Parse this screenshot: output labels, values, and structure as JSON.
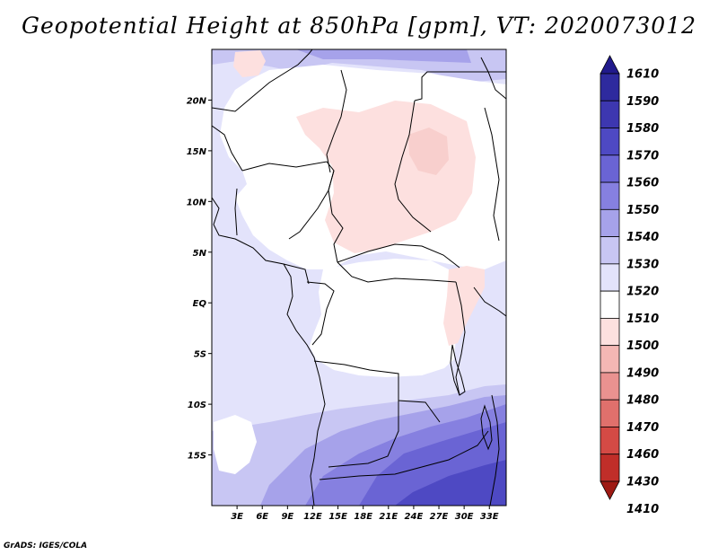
{
  "title": "Geopotential Height at 850hPa [gpm], VT: 2020073012",
  "credit": "GrADS: IGES/COLA",
  "axes": {
    "lat_labels": [
      "20N",
      "15N",
      "10N",
      "5N",
      "EQ",
      "5S",
      "10S",
      "15S"
    ],
    "lat_values": [
      20,
      15,
      10,
      5,
      0,
      -5,
      -10,
      -15
    ],
    "lon_labels": [
      "3E",
      "6E",
      "9E",
      "12E",
      "15E",
      "18E",
      "21E",
      "24E",
      "27E",
      "30E",
      "33E"
    ],
    "lon_values": [
      3,
      6,
      9,
      12,
      15,
      18,
      21,
      24,
      27,
      30,
      33
    ],
    "lat_range": [
      -20,
      25
    ],
    "lon_range": [
      0,
      35
    ]
  },
  "colorbar": {
    "levels": [
      "1610",
      "1590",
      "1580",
      "1570",
      "1560",
      "1550",
      "1540",
      "1530",
      "1520",
      "1510",
      "1500",
      "1490",
      "1480",
      "1470",
      "1460",
      "1430",
      "1410"
    ],
    "colors": [
      "#211a8c",
      "#2e2a9e",
      "#3d37b0",
      "#4e49c3",
      "#6a64d4",
      "#8680e0",
      "#a6a2ea",
      "#c8c6f3",
      "#e3e3fb",
      "#ffffff",
      "#fde0df",
      "#f4b7b4",
      "#ea9290",
      "#e0706c",
      "#d44a45",
      "#c02e29",
      "#9e1a14"
    ]
  },
  "map": {
    "background_color": "#ffffff",
    "boundary_color": "#000000",
    "field_colors": {
      "very_light_blue": "#e3e3fb",
      "light_blue": "#c8c6f3",
      "mid_blue": "#a6a2ea",
      "blue": "#8680e0",
      "deep_blue": "#6a64d4",
      "darkest_blue": "#4e49c3",
      "light_pink": "#fde0df",
      "pink": "#f8cfcd"
    }
  }
}
